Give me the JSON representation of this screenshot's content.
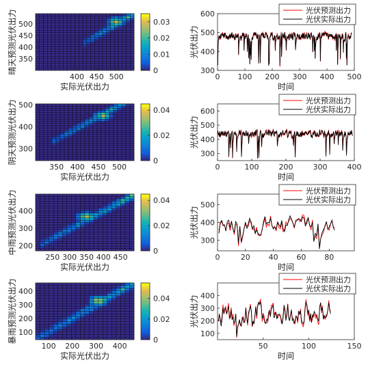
{
  "figure": {
    "colors": {
      "predicted_line": "#ff0000",
      "actual_line": "#000000",
      "heatmap_colormap": "parula",
      "heatmap_cell_border": "#000000",
      "axes": "#262626"
    }
  },
  "chart_data": [
    {
      "type": "heatmap",
      "name": "sunny-heatmap",
      "xlabel": "实际光伏出力",
      "ylabel": "晴天预测光伏出力",
      "xlim": [
        295,
        545
      ],
      "ylim": [
        300,
        545
      ],
      "xticks": [
        400,
        450,
        500
      ],
      "yticks": [
        350,
        400,
        450,
        500
      ],
      "grid_cells": [
        25,
        24
      ],
      "diagonal_band": [
        [
          420,
          420
        ],
        [
          540,
          540
        ]
      ],
      "peak_cell": [
        500,
        510
      ],
      "colorbar": {
        "min": 0,
        "max": 0.035,
        "ticks": [
          0,
          0.01,
          0.02,
          0.03
        ]
      }
    },
    {
      "type": "line",
      "name": "sunny-line",
      "xlabel": "时间",
      "ylabel": "光伏出力",
      "xlim": [
        0,
        500
      ],
      "ylim": [
        300,
        600
      ],
      "xticks": [
        0,
        100,
        200,
        300,
        400,
        500
      ],
      "yticks": [
        300,
        400,
        500,
        600
      ],
      "legend": "top-right",
      "series": [
        {
          "name": "光伏预测出力",
          "color": "#ff0000"
        },
        {
          "name": "光伏实际出力",
          "color": "#000000"
        }
      ],
      "n_points": 490,
      "baseline": 480,
      "spread": 30,
      "dip_min": 320
    },
    {
      "type": "heatmap",
      "name": "cloudy-heatmap",
      "xlabel": "实际光伏出力",
      "ylabel": "阴天预测光伏出力",
      "xlim": [
        300,
        535
      ],
      "ylim": [
        245,
        505
      ],
      "xticks": [
        350,
        400,
        450,
        500
      ],
      "yticks": [
        300,
        400,
        500
      ],
      "grid_cells": [
        24,
        26
      ],
      "diagonal_band": [
        [
          350,
          340
        ],
        [
          520,
          520
        ]
      ],
      "peak_cell": [
        460,
        450
      ],
      "colorbar": {
        "min": 0,
        "max": 0.045,
        "ticks": [
          0,
          0.02,
          0.04
        ]
      }
    },
    {
      "type": "line",
      "name": "cloudy-line",
      "xlabel": "时间",
      "ylabel": "光伏出力",
      "xlim": [
        0,
        400
      ],
      "ylim": [
        250,
        650
      ],
      "xticks": [
        0,
        100,
        200,
        300,
        400
      ],
      "yticks": [
        300,
        400,
        500,
        600
      ],
      "legend": "top-right",
      "series": [
        {
          "name": "光伏预测出力",
          "color": "#ff0000"
        },
        {
          "name": "光伏实际出力",
          "color": "#000000"
        }
      ],
      "n_points": 395,
      "baseline": 440,
      "spread": 40,
      "dip_min": 260
    },
    {
      "type": "heatmap",
      "name": "moderate-rain-heatmap",
      "xlabel": "实际光伏出力",
      "ylabel": "中雨预测光伏出力",
      "xlim": [
        200,
        490
      ],
      "ylim": [
        170,
        495
      ],
      "xticks": [
        250,
        300,
        350,
        400,
        450
      ],
      "yticks": [
        200,
        300,
        400
      ],
      "grid_cells": [
        22,
        24
      ],
      "diagonal_band": [
        [
          220,
          210
        ],
        [
          480,
          480
        ]
      ],
      "peak_cell": [
        350,
        365
      ],
      "colorbar": {
        "min": 0,
        "max": 0.045,
        "ticks": [
          0,
          0.02,
          0.04
        ]
      }
    },
    {
      "type": "line",
      "name": "moderate-rain-line",
      "xlabel": "时间",
      "ylabel": "光伏出力",
      "xlim": [
        0,
        98
      ],
      "ylim": [
        240,
        560
      ],
      "xticks": [
        0,
        20,
        40,
        60,
        80
      ],
      "yticks": [
        300,
        400,
        500
      ],
      "legend": "top-right",
      "series": [
        {
          "name": "光伏预测出力",
          "color": "#ff0000"
        },
        {
          "name": "光伏实际出力",
          "color": "#000000"
        }
      ],
      "n_points": 84,
      "baseline": 380,
      "spread": 80,
      "dip_min": 245
    },
    {
      "type": "heatmap",
      "name": "rainstorm-heatmap",
      "xlabel": "实际光伏出力",
      "ylabel": "暴雨预测光伏出力",
      "xlim": [
        45,
        460
      ],
      "ylim": [
        45,
        460
      ],
      "xticks": [
        100,
        200,
        300,
        400
      ],
      "yticks": [
        100,
        200,
        300,
        400
      ],
      "grid_cells": [
        22,
        22
      ],
      "diagonal_band": [
        [
          60,
          60
        ],
        [
          450,
          450
        ]
      ],
      "peak_cell": [
        310,
        330
      ],
      "colorbar": {
        "min": 0,
        "max": 0.055,
        "ticks": [
          0,
          0.02,
          0.04
        ]
      }
    },
    {
      "type": "line",
      "name": "rainstorm-line",
      "xlabel": "时间",
      "ylabel": "光伏出力",
      "xlim": [
        0,
        150
      ],
      "ylim": [
        50,
        500
      ],
      "xticks": [
        50,
        100,
        150
      ],
      "yticks": [
        100,
        200,
        300,
        400
      ],
      "legend": "top-right",
      "series": [
        {
          "name": "光伏预测出力",
          "color": "#ff0000"
        },
        {
          "name": "光伏实际出力",
          "color": "#000000"
        }
      ],
      "n_points": 124,
      "baseline": 260,
      "spread": 130,
      "dip_min": 55
    }
  ]
}
